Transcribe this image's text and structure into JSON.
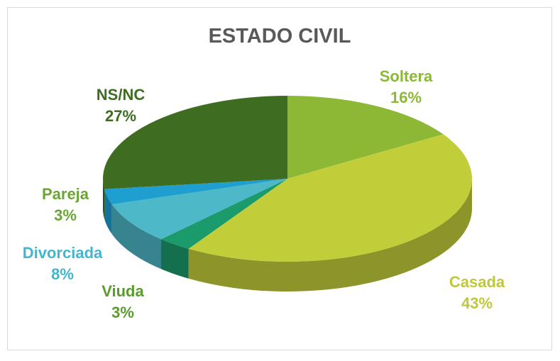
{
  "chart_data": {
    "type": "pie3d",
    "title": "ESTADO CIVIL",
    "categories": [
      "Soltera",
      "Casada",
      "Viuda",
      "Divorciada",
      "Pareja",
      "NS/NC"
    ],
    "values": [
      16,
      43,
      3,
      8,
      3,
      27
    ],
    "value_labels": [
      "16%",
      "43%",
      "3%",
      "8%",
      "3%",
      "27%"
    ],
    "colors": [
      "#8cb836",
      "#c2cd3a",
      "#1b9a6c",
      "#4cb8c8",
      "#1f9fd0",
      "#3e6d22"
    ],
    "label_colors": [
      "#8cb836",
      "#bfc83a",
      "#5a9b2e",
      "#43b5cf",
      "#6aa536",
      "#3e6d22"
    ]
  }
}
